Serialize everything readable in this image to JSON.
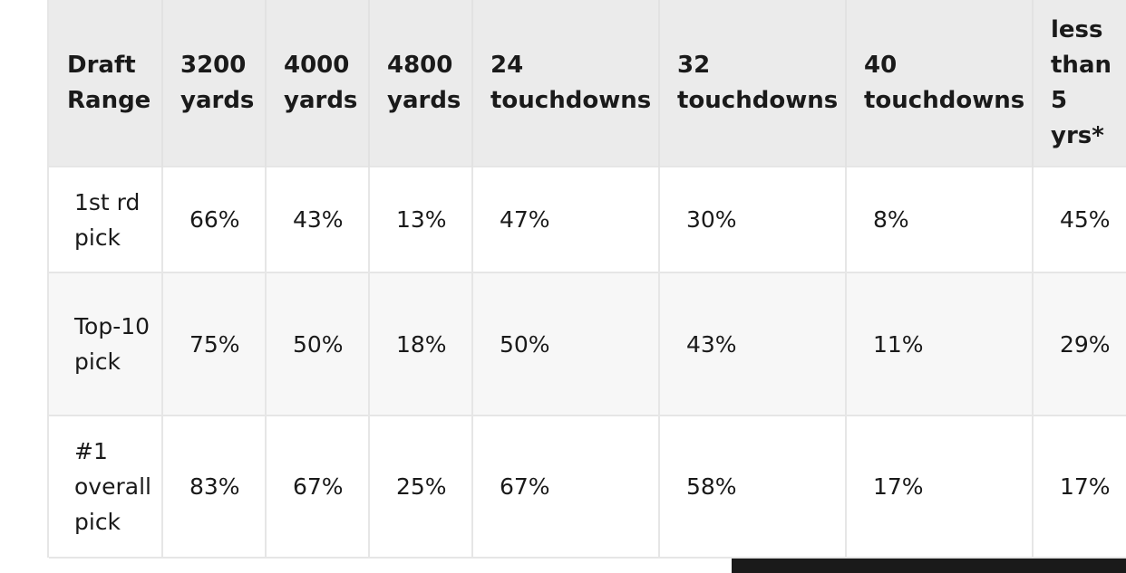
{
  "table": {
    "headers": [
      "Draft Range",
      "3200 yards",
      "4000 yards",
      "4800 yards",
      "24 touchdowns",
      "32 touchdowns",
      "40 touchdowns",
      "less than 5 yrs*"
    ],
    "rows": [
      [
        "1st rd pick",
        "66%",
        "43%",
        "13%",
        "47%",
        "30%",
        "8%",
        "45%"
      ],
      [
        "Top-10 pick",
        "75%",
        "50%",
        "18%",
        "50%",
        "43%",
        "11%",
        "29%"
      ],
      [
        "#1 overall pick",
        "83%",
        "67%",
        "25%",
        "67%",
        "58%",
        "17%",
        "17%"
      ]
    ]
  }
}
